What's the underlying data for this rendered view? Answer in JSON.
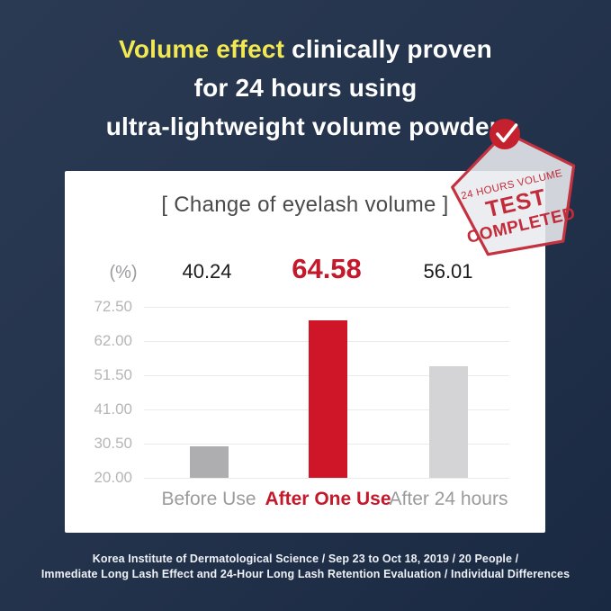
{
  "header": {
    "line1_highlight": "Volume effect",
    "line1_rest": " clinically proven",
    "line2": "for 24 hours using",
    "line3": "ultra-lightweight volume powder.",
    "highlight_color": "#f2e851"
  },
  "stamp": {
    "line1": "24 HOURS VOLUME",
    "line2": "TEST",
    "line3": "COMPLETED",
    "icon": "check-icon",
    "color": "#c22b39"
  },
  "chart_data": {
    "type": "bar",
    "title": "[ Change of eyelash volume ]",
    "unit": "(%)",
    "categories": [
      "Before Use",
      "After One Use",
      "After 24 hours"
    ],
    "values": [
      40.24,
      64.58,
      56.01
    ],
    "highlighted_index": 1,
    "y_ticks": [
      "72.50",
      "62.00",
      "51.50",
      "41.00",
      "30.50",
      "20.00"
    ],
    "ylim": [
      20.0,
      72.5
    ],
    "grid": true,
    "legend": "none",
    "bar_colors": [
      "#aeaeb0",
      "#ce1628",
      "#d4d4d6"
    ],
    "visual_bar_fractions": [
      0.182,
      0.921,
      0.655
    ],
    "accent_red": "#c3192b"
  },
  "footer": {
    "line1": "Korea Institute of Dermatological Science / Sep 23 to Oct 18, 2019 / 20 People /",
    "line2": "Immediate Long Lash Effect and 24-Hour Long Lash Retention Evaluation / Individual Differences"
  }
}
